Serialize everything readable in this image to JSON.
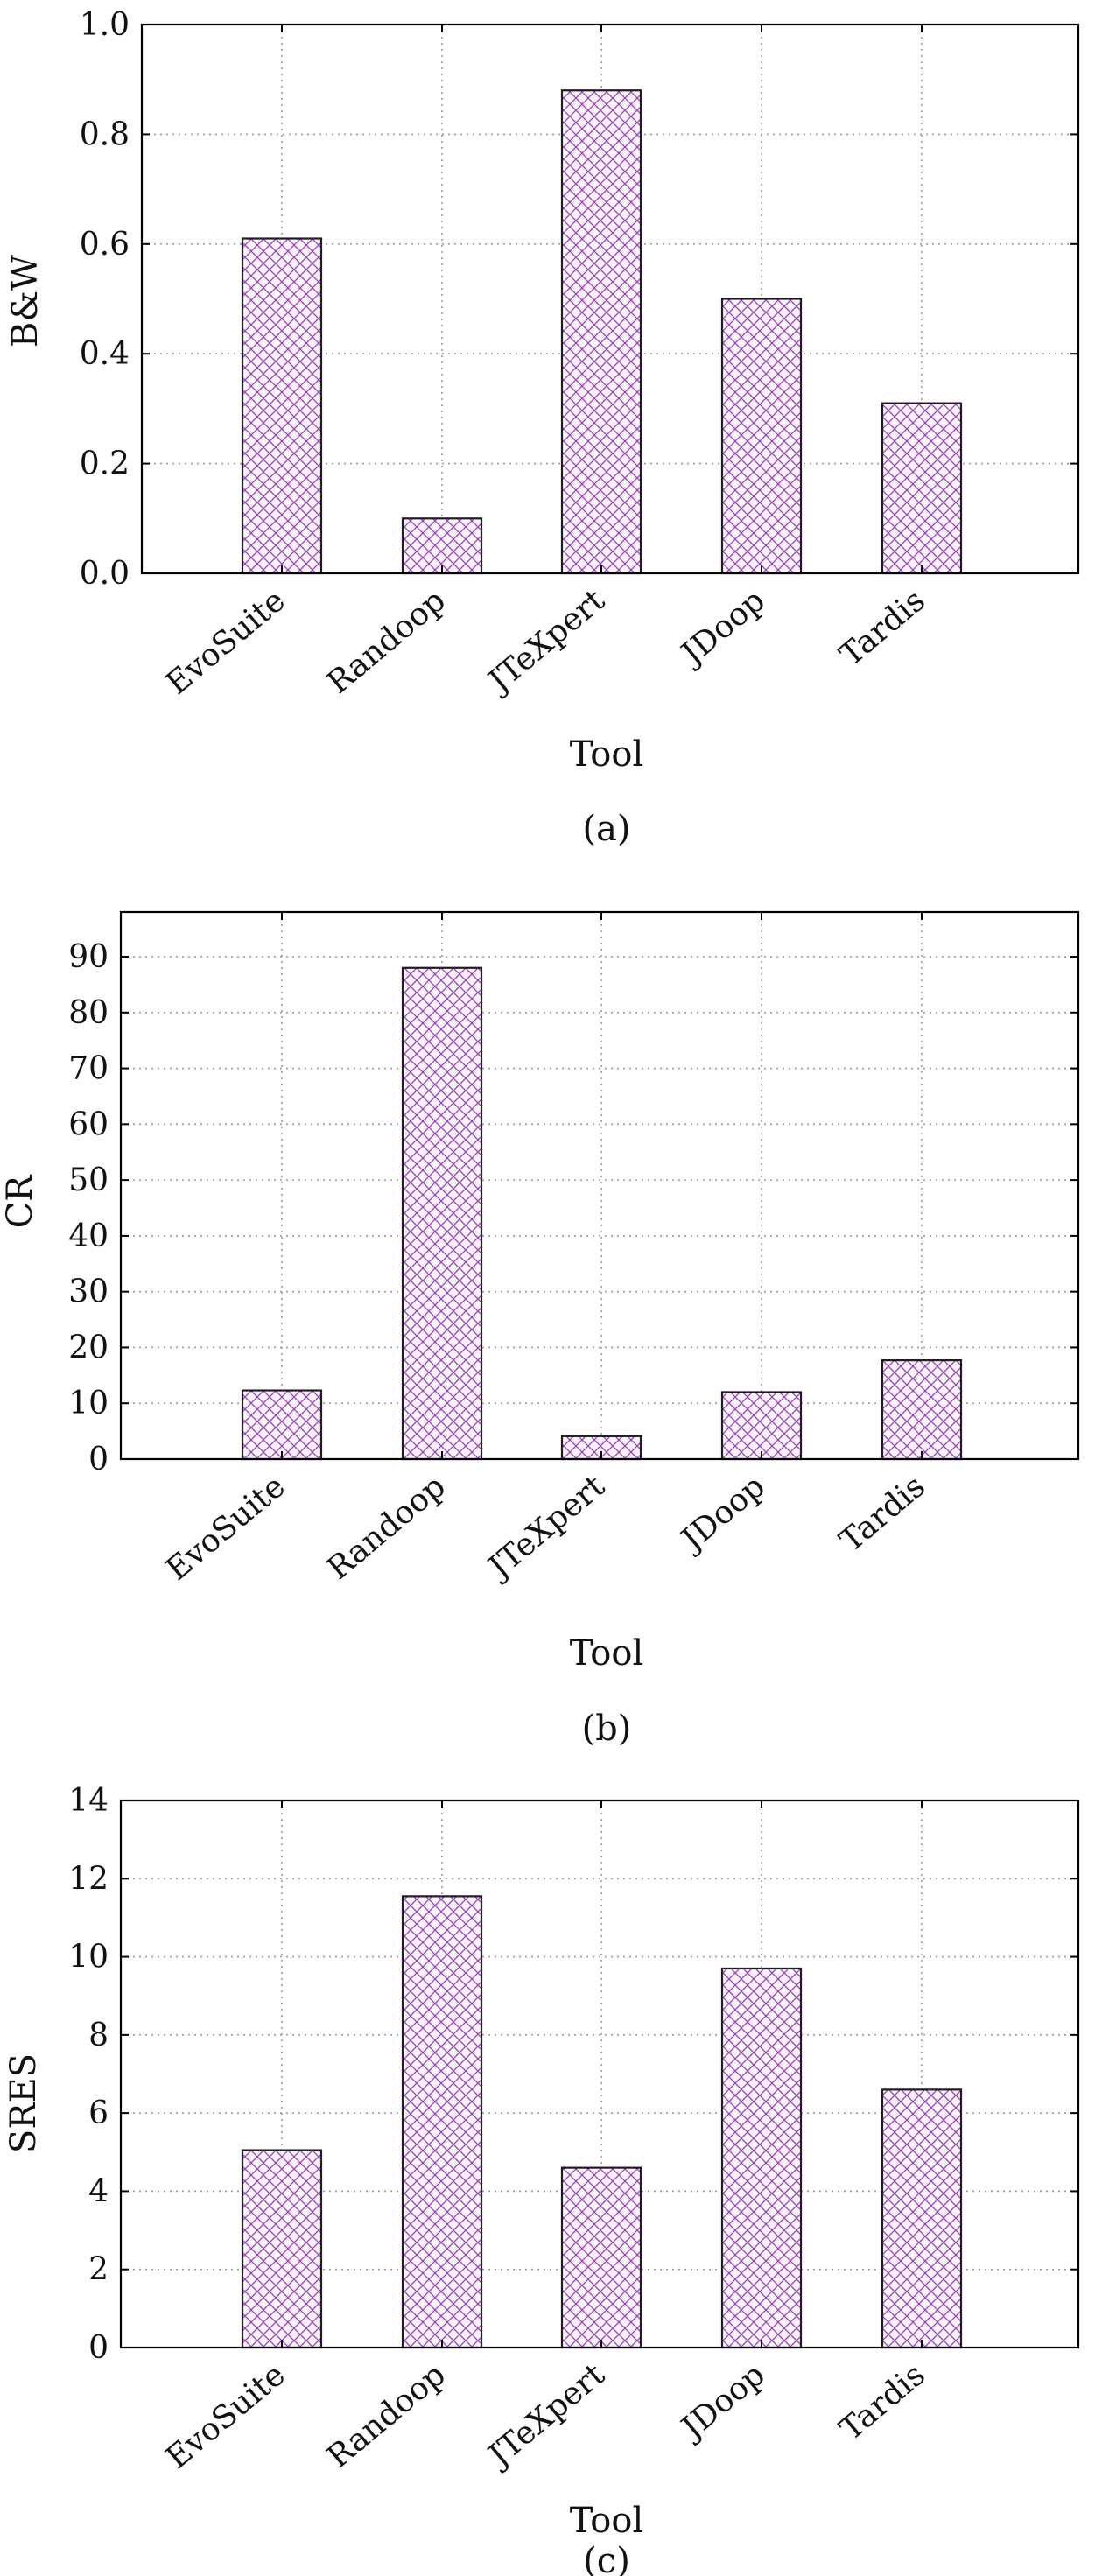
{
  "hatch_color": "#9b3fc0",
  "bar_fill": "#fbf3fd",
  "chart_data": [
    {
      "type": "bar",
      "caption": "(a)",
      "xlabel": "Tool",
      "ylabel": "B&W",
      "categories": [
        "EvoSuite",
        "Randoop",
        "JTeXpert",
        "JDoop",
        "Tardis"
      ],
      "values": [
        0.61,
        0.1,
        0.88,
        0.5,
        0.31
      ],
      "ylim": [
        0,
        1
      ],
      "yticks": [
        0,
        0.2,
        0.4,
        0.6,
        0.8,
        1.0
      ],
      "ytick_labels": [
        "0.0",
        "0.2",
        "0.4",
        "0.6",
        "0.8",
        "1.0"
      ],
      "grid": true
    },
    {
      "type": "bar",
      "caption": "(b)",
      "xlabel": "Tool",
      "ylabel": "CR",
      "categories": [
        "EvoSuite",
        "Randoop",
        "JTeXpert",
        "JDoop",
        "Tardis"
      ],
      "values": [
        12.3,
        88.0,
        4.1,
        12.0,
        17.7
      ],
      "ylim": [
        0,
        98
      ],
      "yticks": [
        0,
        10,
        20,
        30,
        40,
        50,
        60,
        70,
        80,
        90
      ],
      "ytick_labels": [
        "0",
        "10",
        "20",
        "30",
        "40",
        "50",
        "60",
        "70",
        "80",
        "90"
      ],
      "grid": true
    },
    {
      "type": "bar",
      "caption": "(c)",
      "xlabel": "Tool",
      "ylabel": "SRES",
      "categories": [
        "EvoSuite",
        "Randoop",
        "JTeXpert",
        "JDoop",
        "Tardis"
      ],
      "values": [
        5.05,
        11.55,
        4.6,
        9.7,
        6.6
      ],
      "ylim": [
        0,
        14
      ],
      "yticks": [
        0,
        2,
        4,
        6,
        8,
        10,
        12,
        14
      ],
      "ytick_labels": [
        "0",
        "2",
        "4",
        "6",
        "8",
        "10",
        "12",
        "14"
      ],
      "grid": true
    }
  ]
}
